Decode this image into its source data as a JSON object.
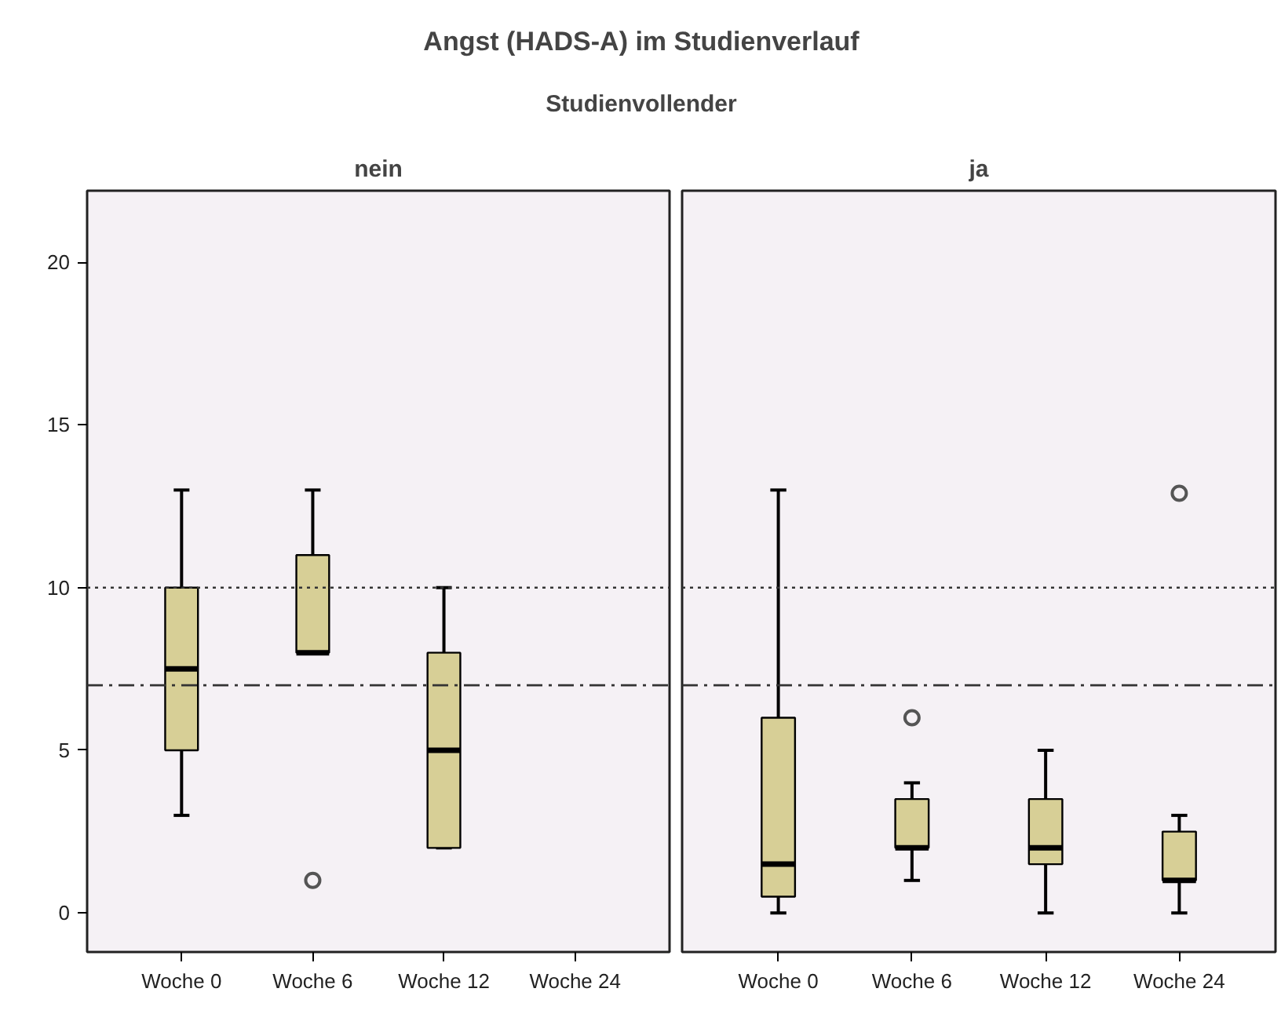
{
  "chart_data": [
    {
      "type": "other",
      "title": "Angst (HADS-A) im Studienverlauf",
      "subtitle": "Studienvollender"
    },
    {
      "type": "box",
      "title": "nein",
      "categories": [
        "Woche 0",
        "Woche 6",
        "Woche 12",
        "Woche 24"
      ],
      "boxes": [
        {
          "low": 3,
          "q1": 5,
          "median": 7.5,
          "q3": 10,
          "high": 13
        },
        {
          "low": 8,
          "q1": 8,
          "median": 8,
          "q3": 11,
          "high": 13,
          "outliers": [
            1
          ]
        },
        {
          "low": 2,
          "q1": 2,
          "median": 5,
          "q3": 8,
          "high": 10
        },
        null
      ],
      "color": "#d7cf96",
      "ylim": [
        -1.2,
        22.2
      ],
      "yticks": [
        0,
        5,
        10,
        15,
        20
      ],
      "grid": false,
      "ref_lines": [
        {
          "axis": "y",
          "value": 10,
          "line_style": "dotted"
        },
        {
          "axis": "y",
          "value": 7,
          "line_style": "dashdot"
        }
      ]
    },
    {
      "type": "box",
      "title": "ja",
      "categories": [
        "Woche 0",
        "Woche 6",
        "Woche 12",
        "Woche 24"
      ],
      "boxes": [
        {
          "low": 0,
          "q1": 0.5,
          "median": 1.5,
          "q3": 6,
          "high": 13
        },
        {
          "low": 1,
          "q1": 2,
          "median": 2,
          "q3": 3.5,
          "high": 4,
          "outliers": [
            6
          ]
        },
        {
          "low": 0,
          "q1": 1.5,
          "median": 2,
          "q3": 3.5,
          "high": 5
        },
        {
          "low": 0,
          "q1": 1,
          "median": 1,
          "q3": 2.5,
          "high": 3,
          "outliers": [
            12.9
          ]
        }
      ],
      "color": "#d7cf96",
      "ylim": [
        -1.2,
        22.2
      ],
      "yticks": [
        0,
        5,
        10,
        15,
        20
      ],
      "grid": false,
      "tick_labels": "x",
      "ref_lines": [
        {
          "axis": "y",
          "value": 10,
          "line_style": "dotted"
        },
        {
          "axis": "y",
          "value": 7,
          "line_style": "dashdot"
        }
      ]
    }
  ]
}
